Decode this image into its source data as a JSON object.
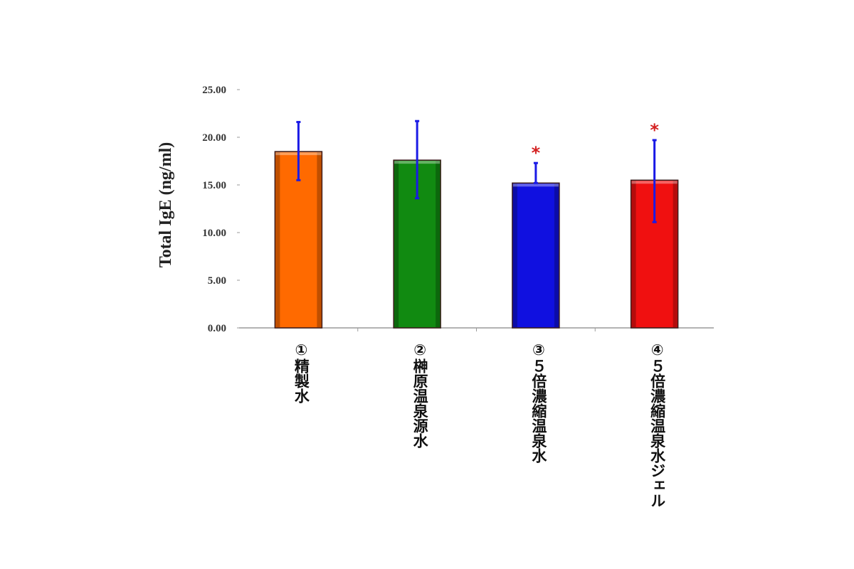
{
  "chart_data": {
    "type": "bar",
    "ylabel": "Total IgE (ng/ml)",
    "ylim": [
      0,
      25
    ],
    "yticks": [
      "0.00",
      "5.00",
      "10.00",
      "15.00",
      "20.00",
      "25.00"
    ],
    "categories": [
      "①精製水",
      "②榊原温泉源水",
      "③５倍濃縮温泉水",
      "④５倍濃縮温泉水ジェル"
    ],
    "values": [
      18.5,
      17.6,
      15.2,
      15.5
    ],
    "error_upper": [
      21.6,
      21.7,
      17.3,
      19.7
    ],
    "error_lower": [
      15.5,
      13.6,
      15.2,
      11.1
    ],
    "significance": [
      "",
      "",
      "*",
      "*"
    ],
    "colors": [
      "#ff6a00",
      "#118a11",
      "#1010e0",
      "#f01010"
    ],
    "error_color": "#1a1ae6",
    "grid": false
  }
}
